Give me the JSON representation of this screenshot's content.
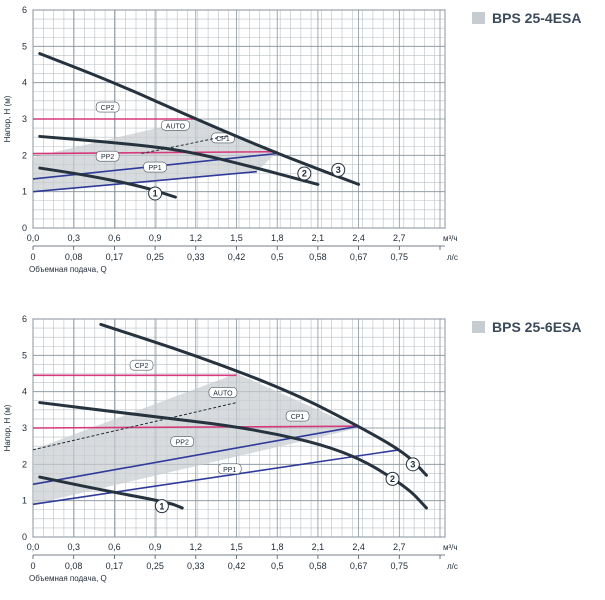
{
  "chart_data": [
    {
      "type": "line",
      "title": "BPS 25-4ESA",
      "ylabel": "Напор, Н (м)",
      "xlabel": "Объемная подача, Q",
      "x_unit_top": "м³/ч",
      "x_unit_bottom": "л/с",
      "xlim": [
        0,
        2.7
      ],
      "ylim": [
        0,
        6
      ],
      "xticks": [
        "0,0",
        "0,3",
        "0,6",
        "0,9",
        "1,2",
        "1,5",
        "1,8",
        "2,1",
        "2,4",
        "2,7"
      ],
      "xticks_bottom": [
        "0",
        "0,08",
        "0,17",
        "0,25",
        "0,33",
        "0,42",
        "0,5",
        "0,58",
        "0,67",
        "0,75"
      ],
      "yticks": [
        "0",
        "1",
        "2",
        "3",
        "4",
        "5",
        "6"
      ],
      "grid": true,
      "shaded_region": [
        [
          0,
          1.95
        ],
        [
          1.2,
          3.0
        ],
        [
          1.8,
          2.1
        ],
        [
          1.65,
          1.55
        ],
        [
          0,
          1.0
        ]
      ],
      "curves": [
        {
          "label": "1",
          "values": [
            [
              0.05,
              1.65
            ],
            [
              0.4,
              1.45
            ],
            [
              0.8,
              1.15
            ],
            [
              1.05,
              0.85
            ]
          ],
          "label_at": [
            0.9,
            0.95
          ]
        },
        {
          "label": "2",
          "values": [
            [
              0.05,
              2.52
            ],
            [
              0.6,
              2.35
            ],
            [
              1.1,
              2.15
            ],
            [
              1.6,
              1.7
            ],
            [
              2.1,
              1.2
            ]
          ],
          "label_at": [
            2.0,
            1.5
          ]
        },
        {
          "label": "3",
          "values": [
            [
              0.05,
              4.8
            ],
            [
              0.6,
              4.0
            ],
            [
              1.2,
              3.0
            ],
            [
              1.8,
              2.05
            ],
            [
              2.4,
              1.2
            ]
          ],
          "label_at": [
            2.25,
            1.6
          ]
        }
      ],
      "pressure_lines": [
        {
          "label": "CP2",
          "values": [
            [
              0,
              3.0
            ],
            [
              1.2,
              3.0
            ]
          ],
          "label_at": [
            0.55,
            3.3
          ]
        },
        {
          "label": "CP1",
          "values": [
            [
              0,
              2.05
            ],
            [
              1.8,
              2.1
            ]
          ],
          "label_at": [
            1.4,
            2.45
          ]
        },
        {
          "label": "AUTO",
          "values": [
            [
              0.8,
              2.05
            ],
            [
              1.45,
              2.55
            ]
          ],
          "dashed": true,
          "label_at": [
            1.05,
            2.8
          ]
        },
        {
          "label": "PP2",
          "values": [
            [
              0,
              1.35
            ],
            [
              1.8,
              2.05
            ]
          ],
          "label_at": [
            0.55,
            1.95
          ]
        },
        {
          "label": "PP1",
          "values": [
            [
              0,
              1.0
            ],
            [
              1.65,
              1.55
            ]
          ],
          "label_at": [
            0.9,
            1.65
          ]
        }
      ]
    },
    {
      "type": "line",
      "title": "BPS 25-6ESA",
      "ylabel": "Напор, Н (м)",
      "xlabel": "Объемная подача, Q",
      "x_unit_top": "м³/ч",
      "x_unit_bottom": "л/с",
      "xlim": [
        0,
        2.7
      ],
      "ylim": [
        0,
        6
      ],
      "xticks": [
        "0,0",
        "0,3",
        "0,6",
        "0,9",
        "1,2",
        "1,5",
        "1,8",
        "2,1",
        "2,4",
        "2,7"
      ],
      "xticks_bottom": [
        "0",
        "0,08",
        "0,17",
        "0,25",
        "0,33",
        "0,42",
        "0,5",
        "0,58",
        "0,67",
        "0,75"
      ],
      "yticks": [
        "0",
        "1",
        "2",
        "3",
        "4",
        "5",
        "6"
      ],
      "grid": true,
      "shaded_region": [
        [
          0,
          2.4
        ],
        [
          1.5,
          4.5
        ],
        [
          2.4,
          3.0
        ],
        [
          2.4,
          3.0
        ],
        [
          0,
          0.9
        ]
      ],
      "curves": [
        {
          "label": "1",
          "values": [
            [
              0.05,
              1.65
            ],
            [
              0.5,
              1.3
            ],
            [
              1.0,
              0.95
            ],
            [
              1.1,
              0.8
            ]
          ],
          "label_at": [
            0.95,
            0.85
          ]
        },
        {
          "label": "2",
          "values": [
            [
              0.05,
              3.7
            ],
            [
              0.8,
              3.35
            ],
            [
              1.6,
              3.0
            ],
            [
              2.3,
              2.4
            ],
            [
              2.75,
              1.4
            ],
            [
              2.9,
              0.8
            ]
          ],
          "label_at": [
            2.65,
            1.6
          ]
        },
        {
          "label": "3",
          "values": [
            [
              0.5,
              5.85
            ],
            [
              1.2,
              5.0
            ],
            [
              1.9,
              4.0
            ],
            [
              2.4,
              3.05
            ],
            [
              2.75,
              2.3
            ],
            [
              2.9,
              1.7
            ]
          ],
          "label_at": [
            2.8,
            2.0
          ]
        }
      ],
      "pressure_lines": [
        {
          "label": "CP2",
          "values": [
            [
              0,
              4.45
            ],
            [
              1.5,
              4.45
            ]
          ],
          "label_at": [
            0.8,
            4.7
          ]
        },
        {
          "label": "CP1",
          "values": [
            [
              0,
              3.0
            ],
            [
              2.4,
              3.05
            ]
          ],
          "label_at": [
            1.95,
            3.3
          ]
        },
        {
          "label": "AUTO",
          "values": [
            [
              0.0,
              2.4
            ],
            [
              1.5,
              3.7
            ]
          ],
          "dashed": true,
          "label_at": [
            1.4,
            3.95
          ]
        },
        {
          "label": "PP2",
          "values": [
            [
              0,
              1.45
            ],
            [
              2.4,
              3.05
            ]
          ],
          "label_at": [
            1.1,
            2.6
          ]
        },
        {
          "label": "PP1",
          "values": [
            [
              0,
              0.9
            ],
            [
              2.7,
              2.4
            ]
          ],
          "label_at": [
            1.45,
            1.85
          ]
        }
      ]
    }
  ]
}
